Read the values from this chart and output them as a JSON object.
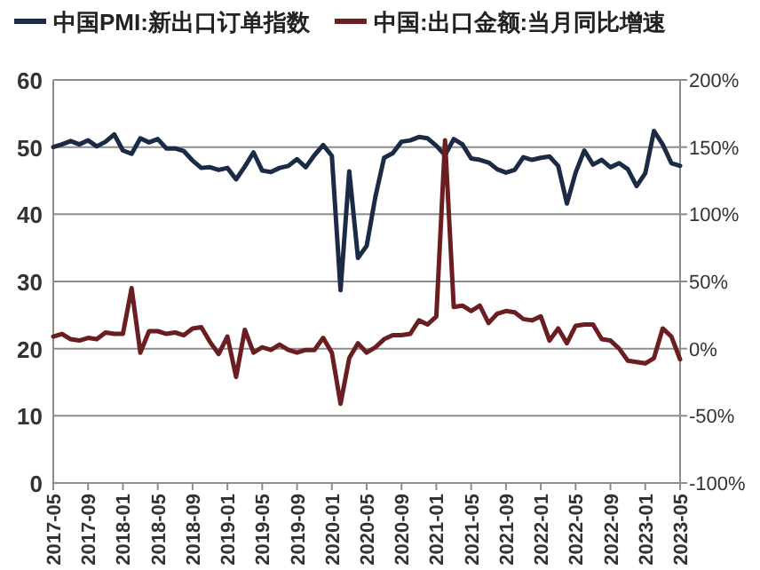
{
  "chart_data": {
    "type": "line",
    "grid": "y",
    "legend": "top",
    "categories": [
      "2017-05",
      null,
      null,
      null,
      "2017-09",
      null,
      null,
      null,
      "2018-01",
      null,
      null,
      null,
      "2018-05",
      null,
      null,
      null,
      "2018-09",
      null,
      null,
      null,
      "2019-01",
      null,
      null,
      null,
      "2019-05",
      null,
      null,
      null,
      "2019-09",
      null,
      null,
      null,
      "2020-01",
      null,
      null,
      null,
      "2020-05",
      null,
      null,
      null,
      "2020-09",
      null,
      null,
      null,
      "2021-01",
      null,
      null,
      null,
      "2021-05",
      null,
      null,
      null,
      "2021-09",
      null,
      null,
      null,
      "2022-01",
      null,
      null,
      null,
      "2022-05",
      null,
      null,
      null,
      "2022-09",
      null,
      null,
      null,
      "2023-01",
      null,
      null,
      null,
      "2023-05"
    ],
    "ylim": [
      0,
      60
    ],
    "yticks": [
      0,
      10,
      20,
      30,
      40,
      50,
      60
    ],
    "y2lim": [
      -100,
      200
    ],
    "y2ticks": [
      {
        "value": -100,
        "label": "-100%"
      },
      {
        "value": -50,
        "label": "-50%"
      },
      {
        "value": 0,
        "label": "0%"
      },
      {
        "value": 50,
        "label": "50%"
      },
      {
        "value": 100,
        "label": "100%"
      },
      {
        "value": 150,
        "label": "150%"
      },
      {
        "value": 200,
        "label": "200%"
      }
    ],
    "series": [
      {
        "name": "中国PMI:新出口订单指数",
        "color": "#1c2b45",
        "values": [
          50.0,
          50.4,
          50.9,
          50.4,
          51.0,
          50.1,
          50.8,
          51.9,
          49.5,
          49.0,
          51.3,
          50.7,
          51.2,
          49.8,
          49.8,
          49.4,
          48.0,
          46.9,
          47.0,
          46.6,
          46.9,
          45.2,
          47.1,
          49.2,
          46.5,
          46.3,
          46.9,
          47.2,
          48.2,
          47.0,
          48.8,
          50.3,
          48.7,
          28.7,
          46.4,
          33.5,
          35.3,
          42.6,
          48.4,
          49.1,
          50.8,
          51.0,
          51.5,
          51.3,
          50.2,
          48.8,
          51.2,
          50.4,
          48.3,
          48.1,
          47.7,
          46.7,
          46.2,
          46.6,
          48.5,
          48.1,
          48.4,
          48.6,
          47.2,
          41.6,
          46.2,
          49.5,
          47.4,
          48.1,
          47.0,
          47.6,
          46.7,
          44.2,
          46.1,
          52.4,
          50.4,
          47.6,
          47.2
        ]
      },
      {
        "name": "中国:出口金额:当月同比增速",
        "color": "#6b1e22",
        "axis": "y2",
        "values": [
          9,
          11,
          7,
          6,
          8,
          7,
          12,
          11,
          11,
          45,
          -3,
          13,
          13,
          11,
          12,
          10,
          15,
          16,
          5,
          -4,
          9,
          -21,
          14,
          -3,
          1,
          -1,
          3,
          -1,
          -3,
          -1,
          -1,
          8,
          -3,
          -41,
          -7,
          4,
          -3,
          1,
          7,
          10,
          10,
          11,
          21,
          18,
          24,
          155,
          31,
          32,
          28,
          32,
          19,
          26,
          28,
          27,
          22,
          21,
          24,
          6,
          15,
          4,
          17,
          18,
          18,
          7,
          6,
          0,
          -9,
          -10,
          -11,
          -7,
          15,
          9,
          -8
        ]
      }
    ]
  }
}
